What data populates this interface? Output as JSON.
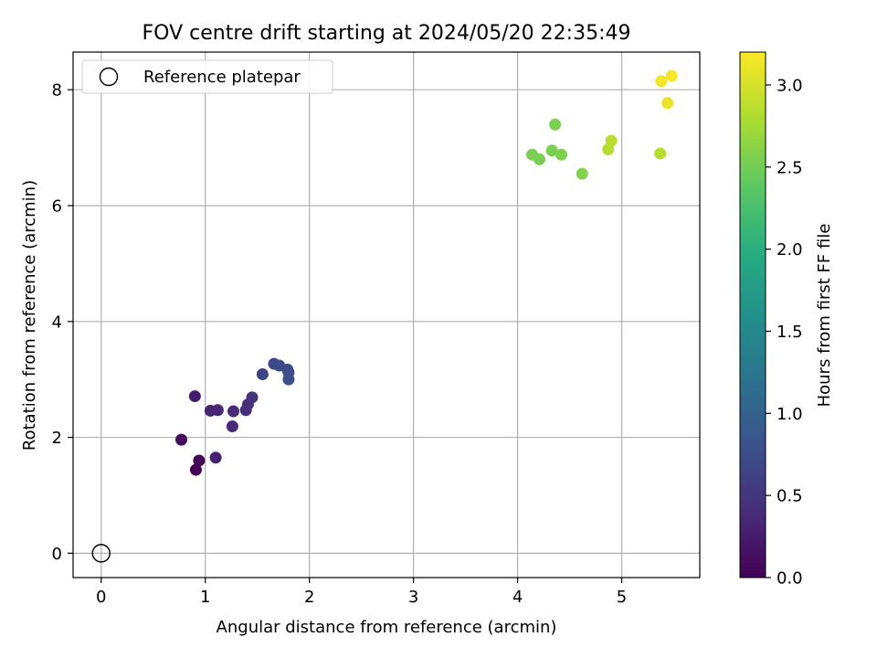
{
  "chart_data": {
    "type": "scatter",
    "title": "FOV centre drift starting at 2024/05/20 22:35:49",
    "xlabel": "Angular distance from reference (arcmin)",
    "ylabel": "Rotation from reference (arcmin)",
    "xlim": [
      -0.27,
      5.75
    ],
    "ylim": [
      -0.42,
      8.65
    ],
    "xticks": [
      0,
      1,
      2,
      3,
      4,
      5
    ],
    "xtick_labels": [
      "0",
      "1",
      "2",
      "3",
      "4",
      "5"
    ],
    "yticks": [
      0,
      2,
      4,
      6,
      8
    ],
    "ytick_labels": [
      "0",
      "2",
      "4",
      "6",
      "8"
    ],
    "grid": true,
    "legend": {
      "placement": "top-left",
      "entries": [
        "Reference platepar"
      ]
    },
    "reference_point": {
      "x": 0,
      "y": 0,
      "label": "Reference platepar"
    },
    "colorbar": {
      "label": "Hours from first FF file",
      "range": [
        0,
        3.2
      ],
      "ticks": [
        0,
        0.5,
        1,
        1.5,
        2,
        2.5,
        3
      ],
      "tick_labels": [
        "0.0",
        "0.5",
        "1.0",
        "1.5",
        "2.0",
        "2.5",
        "3.0"
      ],
      "colormap": "viridis"
    },
    "points": [
      {
        "x": 0.91,
        "y": 1.44,
        "hours": 0.02
      },
      {
        "x": 0.94,
        "y": 1.6,
        "hours": 0.05
      },
      {
        "x": 0.77,
        "y": 1.96,
        "hours": 0.08
      },
      {
        "x": 0.9,
        "y": 2.71,
        "hours": 0.25
      },
      {
        "x": 1.1,
        "y": 1.65,
        "hours": 0.3
      },
      {
        "x": 1.05,
        "y": 2.46,
        "hours": 0.33
      },
      {
        "x": 1.12,
        "y": 2.47,
        "hours": 0.35
      },
      {
        "x": 1.26,
        "y": 2.19,
        "hours": 0.38
      },
      {
        "x": 1.27,
        "y": 2.45,
        "hours": 0.4
      },
      {
        "x": 1.39,
        "y": 2.47,
        "hours": 0.42
      },
      {
        "x": 1.41,
        "y": 2.57,
        "hours": 0.44
      },
      {
        "x": 1.45,
        "y": 2.69,
        "hours": 0.46
      },
      {
        "x": 1.55,
        "y": 3.09,
        "hours": 0.65
      },
      {
        "x": 1.66,
        "y": 3.27,
        "hours": 0.7
      },
      {
        "x": 1.71,
        "y": 3.24,
        "hours": 0.72
      },
      {
        "x": 1.79,
        "y": 3.17,
        "hours": 0.74
      },
      {
        "x": 1.8,
        "y": 3.12,
        "hours": 0.76
      },
      {
        "x": 1.8,
        "y": 3.0,
        "hours": 0.78
      },
      {
        "x": 4.14,
        "y": 6.88,
        "hours": 2.55
      },
      {
        "x": 4.21,
        "y": 6.8,
        "hours": 2.55
      },
      {
        "x": 4.33,
        "y": 6.95,
        "hours": 2.55
      },
      {
        "x": 4.36,
        "y": 7.4,
        "hours": 2.56
      },
      {
        "x": 4.42,
        "y": 6.88,
        "hours": 2.57
      },
      {
        "x": 4.62,
        "y": 6.55,
        "hours": 2.6
      },
      {
        "x": 4.87,
        "y": 6.97,
        "hours": 2.85
      },
      {
        "x": 4.9,
        "y": 7.12,
        "hours": 2.87
      },
      {
        "x": 5.37,
        "y": 6.9,
        "hours": 2.85
      },
      {
        "x": 5.38,
        "y": 8.15,
        "hours": 3.15
      },
      {
        "x": 5.44,
        "y": 7.77,
        "hours": 3.1
      },
      {
        "x": 5.48,
        "y": 8.24,
        "hours": 3.18
      }
    ]
  }
}
